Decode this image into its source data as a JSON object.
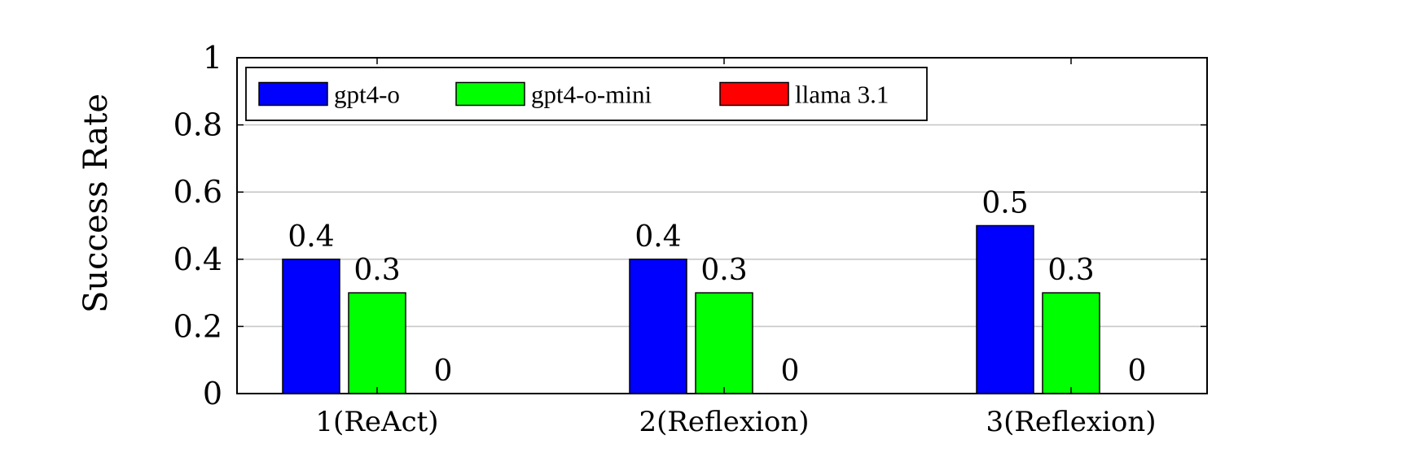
{
  "chart_data": {
    "type": "bar",
    "title": "",
    "xlabel": "",
    "ylabel": "Success Rate",
    "ylim": [
      0,
      1
    ],
    "yticks": [
      0,
      0.2,
      0.4,
      0.6,
      0.8,
      1
    ],
    "ytick_labels": [
      "0",
      "0.2",
      "0.4",
      "0.6",
      "0.8",
      "1"
    ],
    "grid": "horizontal",
    "legend_position": "top-left",
    "categories": [
      "1(ReAct)",
      "2(Reflexion)",
      "3(Reflexion)"
    ],
    "series": [
      {
        "name": "gpt4-o",
        "color": "#0000ff",
        "values": [
          0.4,
          0.4,
          0.5
        ],
        "labels": [
          "0.4",
          "0.4",
          "0.5"
        ]
      },
      {
        "name": "gpt4-o-mini",
        "color": "#00ff00",
        "values": [
          0.3,
          0.3,
          0.3
        ],
        "labels": [
          "0.3",
          "0.3",
          "0.3"
        ]
      },
      {
        "name": "llama 3.1",
        "color": "#ff0000",
        "values": [
          0,
          0,
          0
        ],
        "labels": [
          "0",
          "0",
          "0"
        ]
      }
    ]
  }
}
